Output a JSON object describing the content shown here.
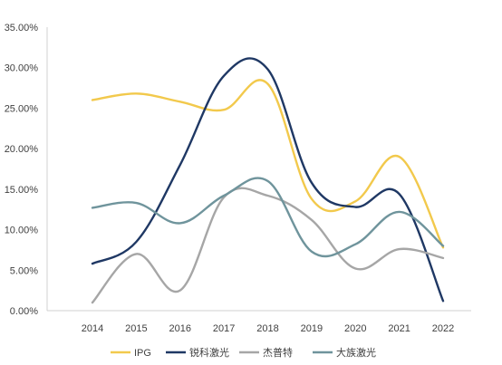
{
  "chart_data": {
    "type": "line",
    "title": "",
    "xlabel": "",
    "ylabel": "",
    "x": [
      "2014",
      "2015",
      "2016",
      "2017",
      "2018",
      "2019",
      "2020",
      "2021",
      "2022"
    ],
    "ylim": [
      0,
      0.35
    ],
    "yticks": [
      "0.00%",
      "5.00%",
      "10.00%",
      "15.00%",
      "20.00%",
      "25.00%",
      "30.00%",
      "35.00%"
    ],
    "grid": false,
    "legend_position": "bottom",
    "smooth": true,
    "series": [
      {
        "name": "IPG",
        "color": "#F2C94C",
        "values": [
          0.26,
          0.268,
          0.258,
          0.248,
          0.28,
          0.138,
          0.135,
          0.19,
          0.078
        ]
      },
      {
        "name": "锐科激光",
        "color": "#1F3864",
        "values": [
          0.058,
          0.085,
          0.18,
          0.29,
          0.298,
          0.158,
          0.128,
          0.144,
          0.012
        ]
      },
      {
        "name": "杰普特",
        "color": "#A6A6A6",
        "values": [
          0.01,
          0.07,
          0.025,
          0.14,
          0.142,
          0.112,
          0.052,
          0.076,
          0.065
        ]
      },
      {
        "name": "大族激光",
        "color": "#6F949C",
        "values": [
          0.127,
          0.133,
          0.108,
          0.142,
          0.16,
          0.073,
          0.082,
          0.122,
          0.08
        ]
      }
    ]
  }
}
